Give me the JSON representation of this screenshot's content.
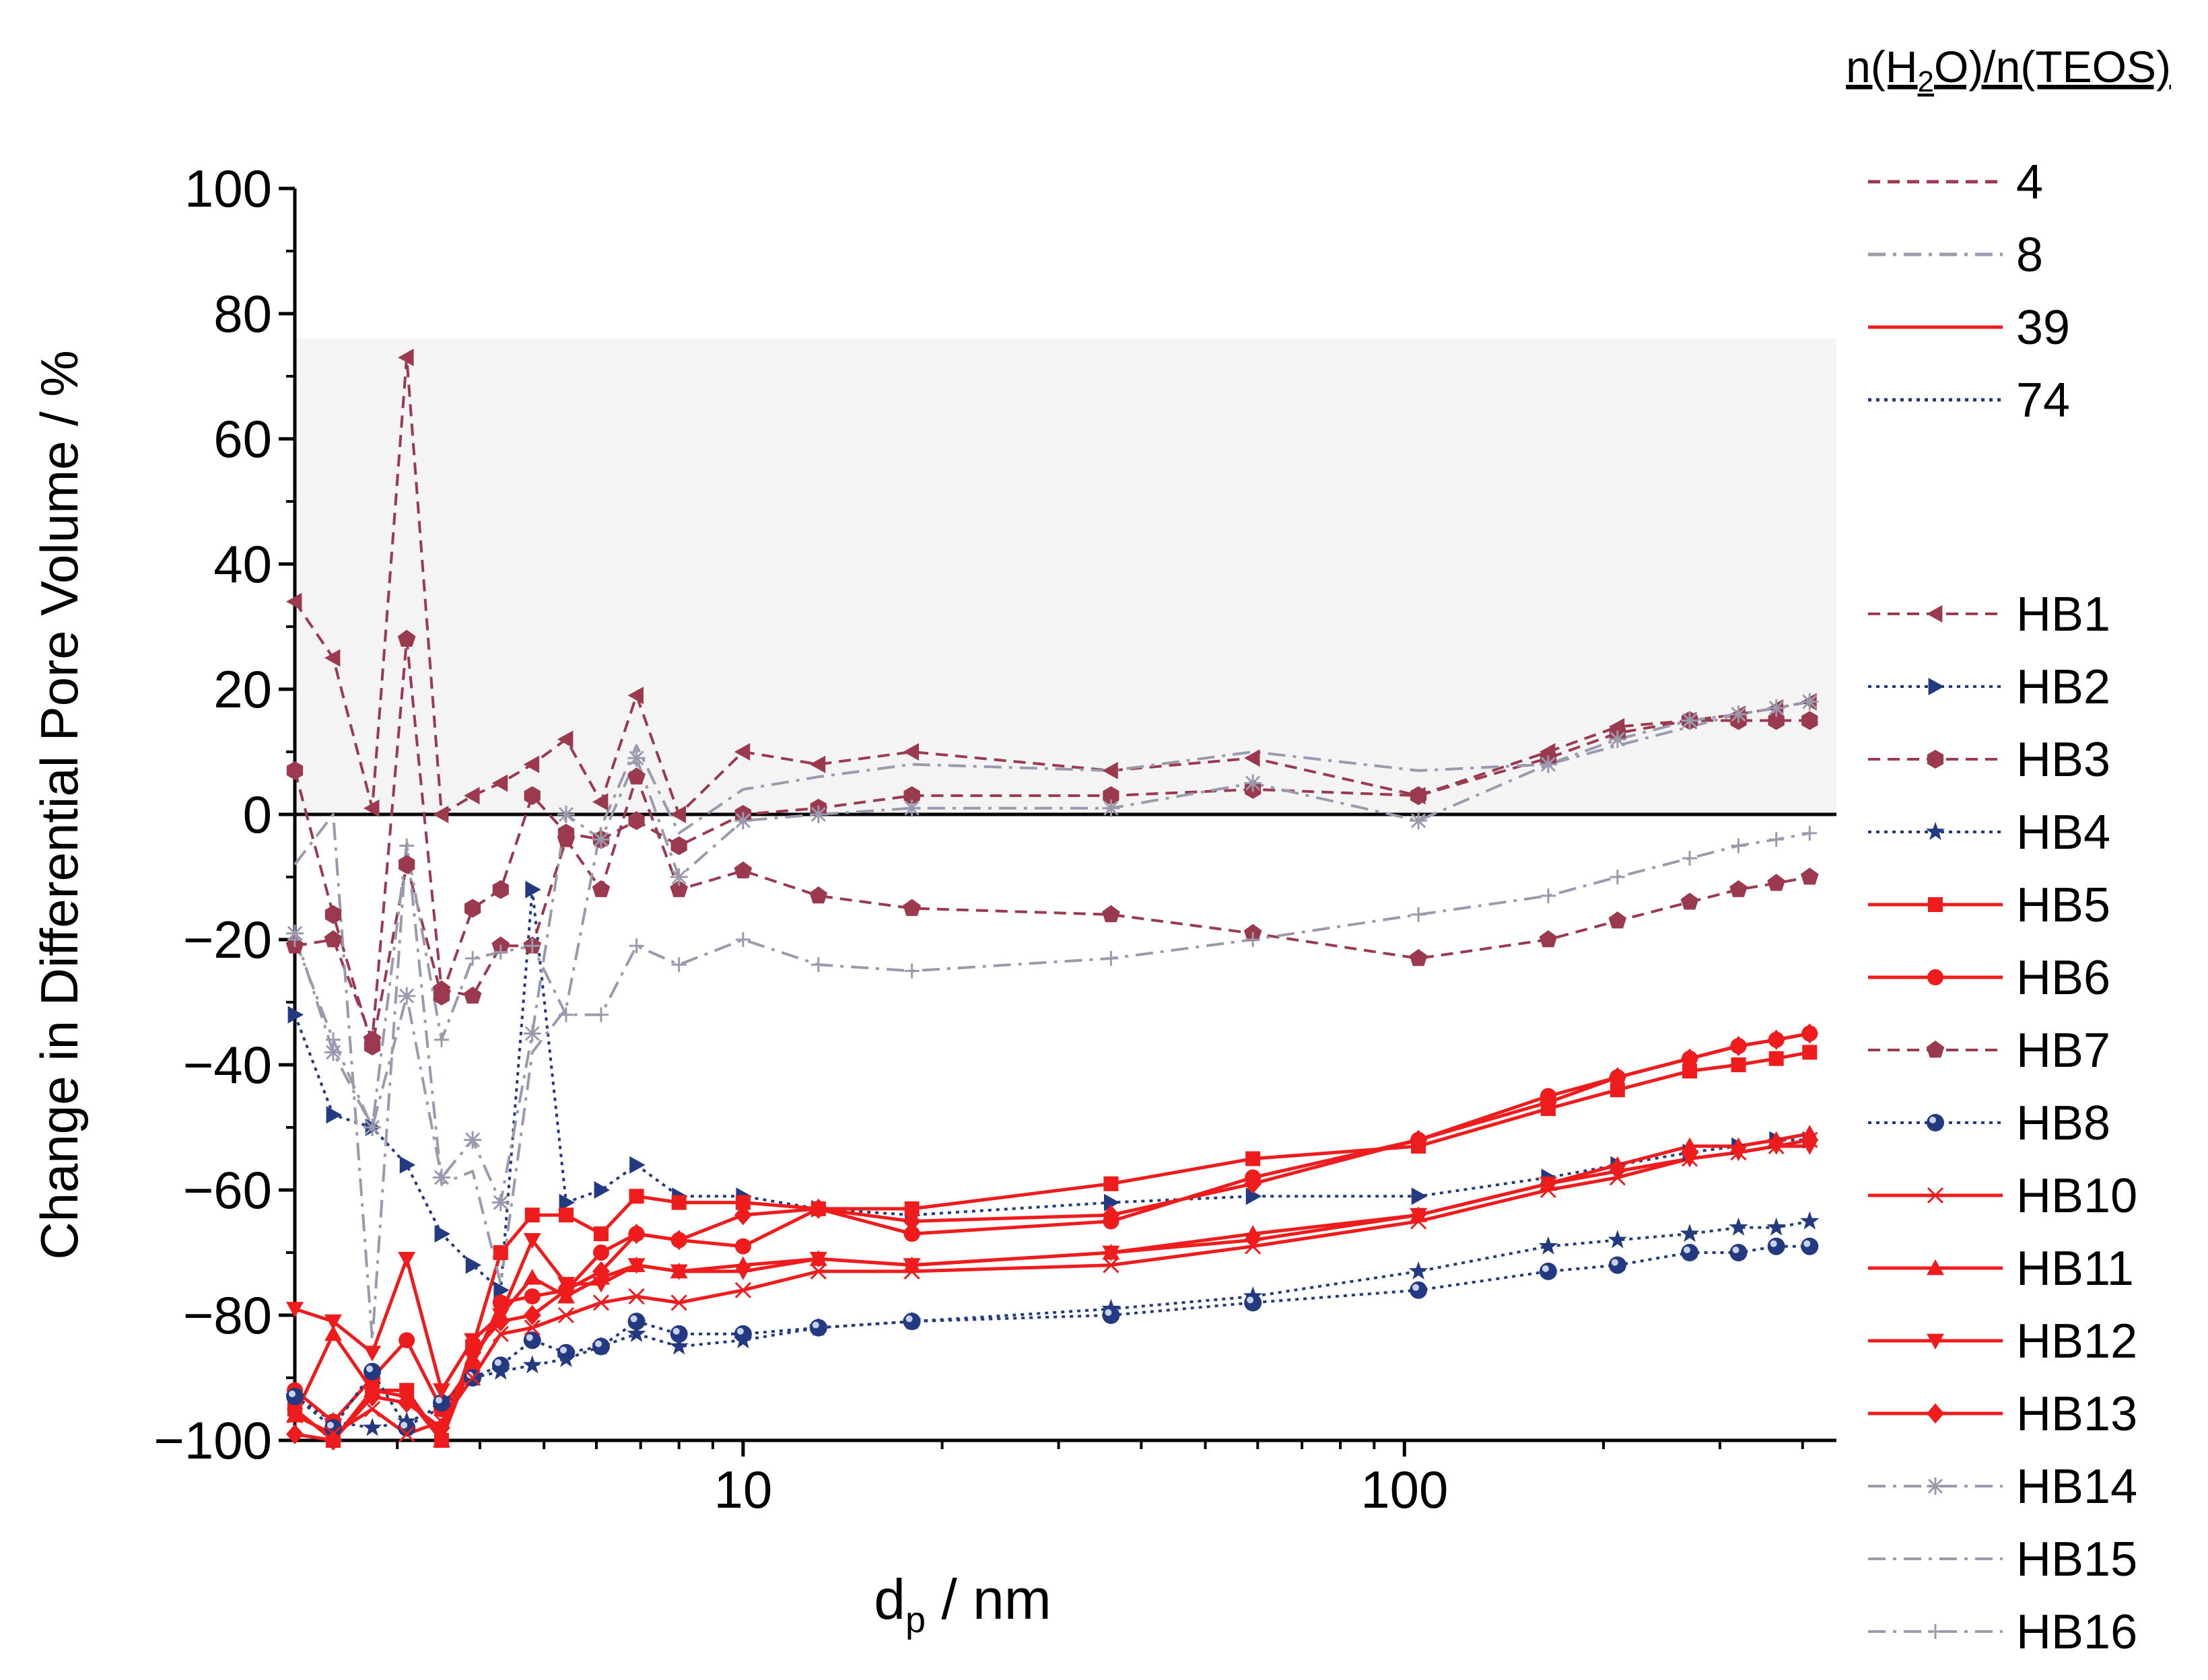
{
  "chart_data": {
    "type": "line",
    "xlabel": "d",
    "xlabel_sub": "p",
    "xlabel_unit": " / nm",
    "ylabel": "Change in Differential Pore Volume / %",
    "xscale": "log",
    "xlim": [
      2.1,
      450
    ],
    "ylim": [
      -100,
      100
    ],
    "yticks": [
      {
        "value": 100,
        "label": "100"
      },
      {
        "value": 80,
        "label": "80"
      },
      {
        "value": 60,
        "label": "60"
      },
      {
        "value": 40,
        "label": "40"
      },
      {
        "value": 20,
        "label": "20"
      },
      {
        "value": 0,
        "label": "0"
      },
      {
        "value": -20,
        "label": "−20"
      },
      {
        "value": -40,
        "label": "−40"
      },
      {
        "value": -60,
        "label": "−60"
      },
      {
        "value": -80,
        "label": "−80"
      },
      {
        "value": -100,
        "label": "−100"
      }
    ],
    "xticks": [
      {
        "value": 10,
        "label": "10"
      },
      {
        "value": 100,
        "label": "100"
      }
    ],
    "shaded_region": [
      0,
      76
    ],
    "x": [
      2.1,
      2.4,
      2.75,
      3.1,
      3.5,
      3.9,
      4.3,
      4.8,
      5.4,
      6.1,
      6.9,
      8.0,
      10,
      13,
      18,
      36,
      59,
      105,
      165,
      210,
      270,
      320,
      365,
      410
    ],
    "legend": {
      "title_prefix": "n(H",
      "title_sub": "2",
      "title_suffix": "O)/n(TEOS)",
      "ratios": [
        {
          "label": "4",
          "style": "dash",
          "color": "#9b3a4e"
        },
        {
          "label": "8",
          "style": "dashdot",
          "color": "#9a9aae"
        },
        {
          "label": "39",
          "style": "solid",
          "color": "#ee1c1c"
        },
        {
          "label": "74",
          "style": "dot",
          "color": "#233a80"
        }
      ]
    },
    "series": [
      {
        "name": "HB1",
        "style": "dash",
        "color": "#9b3a4e",
        "marker": "triangle-left",
        "values": [
          34,
          25,
          1,
          73,
          0,
          3,
          5,
          8,
          12,
          2,
          19,
          0,
          10,
          8,
          10,
          7,
          9,
          3,
          10,
          14,
          15,
          16,
          17,
          18
        ]
      },
      {
        "name": "HB2",
        "style": "dot",
        "color": "#233a80",
        "marker": "triangle-right",
        "values": [
          -32,
          -48,
          -50,
          -56,
          -67,
          -72,
          -76,
          -12,
          -62,
          -60,
          -56,
          -61,
          -61,
          -63,
          -64,
          -62,
          -61,
          -61,
          -58,
          -56,
          -54,
          -53,
          -52,
          -52
        ]
      },
      {
        "name": "HB3",
        "style": "dash",
        "color": "#9b3a4e",
        "marker": "hexagon",
        "values": [
          7,
          -16,
          -37,
          -8,
          -29,
          -15,
          -12,
          3,
          -3,
          -4,
          -1,
          -5,
          0,
          1,
          3,
          3,
          4,
          3,
          9,
          13,
          15,
          15,
          15,
          15
        ]
      },
      {
        "name": "HB4",
        "style": "dot",
        "color": "#233a80",
        "marker": "star",
        "values": [
          -93,
          -97,
          -98,
          -97,
          -95,
          -90,
          -89,
          -88,
          -87,
          -85,
          -83,
          -85,
          -84,
          -82,
          -81,
          -79,
          -77,
          -73,
          -69,
          -68,
          -67,
          -66,
          -66,
          -65
        ]
      },
      {
        "name": "HB5",
        "style": "solid",
        "color": "#ee1c1c",
        "marker": "square",
        "values": [
          -95,
          -100,
          -92,
          -92,
          -100,
          -85,
          -70,
          -64,
          -64,
          -67,
          -61,
          -62,
          -62,
          -63,
          -63,
          -59,
          -55,
          -53,
          -47,
          -44,
          -41,
          -40,
          -39,
          -38
        ]
      },
      {
        "name": "HB6",
        "style": "solid",
        "color": "#ee1c1c",
        "marker": "circle",
        "values": [
          -92,
          -97,
          -90,
          -84,
          -95,
          -88,
          -78,
          -77,
          -76,
          -70,
          -67,
          -68,
          -69,
          -63,
          -67,
          -65,
          -58,
          -52,
          -45,
          -42,
          -39,
          -37,
          -36,
          -35
        ]
      },
      {
        "name": "HB7",
        "style": "dash",
        "color": "#9b3a4e",
        "marker": "pentagon",
        "values": [
          -21,
          -20,
          -36,
          28,
          -28,
          -29,
          -21,
          -21,
          -4,
          -12,
          6,
          -12,
          -9,
          -13,
          -15,
          -16,
          -19,
          -23,
          -20,
          -17,
          -14,
          -12,
          -11,
          -10
        ]
      },
      {
        "name": "HB8",
        "style": "dot",
        "color": "#233a80",
        "marker": "sphere",
        "values": [
          -93,
          -98,
          -89,
          -98,
          -94,
          -90,
          -88,
          -84,
          -86,
          -85,
          -81,
          -83,
          -83,
          -82,
          -81,
          -80,
          -78,
          -76,
          -73,
          -72,
          -70,
          -70,
          -69,
          -69
        ]
      },
      {
        "name": "HB10",
        "style": "solid",
        "color": "#ee1c1c",
        "marker": "x",
        "values": [
          -96,
          -99,
          -95,
          -99,
          -97,
          -90,
          -83,
          -82,
          -80,
          -78,
          -77,
          -78,
          -76,
          -73,
          -73,
          -72,
          -69,
          -65,
          -60,
          -58,
          -55,
          -54,
          -53,
          -52
        ]
      },
      {
        "name": "HB11",
        "style": "solid",
        "color": "#ee1c1c",
        "marker": "triangle-up",
        "values": [
          -96,
          -83,
          -92,
          -93,
          -100,
          -87,
          -80,
          -74,
          -77,
          -74,
          -72,
          -73,
          -72,
          -71,
          -72,
          -70,
          -67,
          -64,
          -59,
          -56,
          -53,
          -53,
          -52,
          -51
        ]
      },
      {
        "name": "HB12",
        "style": "solid",
        "color": "#ee1c1c",
        "marker": "triangle-down",
        "values": [
          -79,
          -81,
          -86,
          -71,
          -92,
          -84,
          -80,
          -68,
          -75,
          -75,
          -72,
          -73,
          -73,
          -71,
          -72,
          -70,
          -68,
          -64,
          -59,
          -57,
          -55,
          -54,
          -53,
          -53
        ]
      },
      {
        "name": "HB13",
        "style": "solid",
        "color": "#ee1c1c",
        "marker": "diamond",
        "values": [
          -99,
          -100,
          -93,
          -94,
          -98,
          -86,
          -81,
          -80,
          -76,
          -73,
          -67,
          -68,
          -64,
          -63,
          -65,
          -64,
          -59,
          -52,
          -46,
          -42,
          -39,
          -37,
          -36,
          -35
        ]
      },
      {
        "name": "HB14",
        "style": "dashdot",
        "color": "#9a9aae",
        "marker": "asterisk",
        "values": [
          -19,
          -38,
          -50,
          -29,
          -58,
          -52,
          -62,
          -35,
          0,
          -4,
          9,
          -10,
          -1,
          0,
          1,
          1,
          5,
          -1,
          8,
          12,
          15,
          16,
          17,
          18
        ]
      },
      {
        "name": "HB15",
        "style": "dashdot",
        "color": "#9a9aae",
        "marker": "none",
        "values": [
          -8,
          0,
          -84,
          -4,
          -59,
          -57,
          -75,
          -38,
          -31,
          -2,
          11,
          -3,
          4,
          6,
          8,
          7,
          10,
          7,
          8,
          11,
          14,
          16,
          17,
          18
        ]
      },
      {
        "name": "HB16",
        "style": "dashdot",
        "color": "#9a9aae",
        "marker": "plus",
        "values": [
          -20,
          -36,
          -50,
          -5,
          -36,
          -23,
          -22,
          -21,
          -32,
          -32,
          -21,
          -24,
          -20,
          -24,
          -25,
          -23,
          -20,
          -16,
          -13,
          -10,
          -7,
          -5,
          -4,
          -3
        ]
      }
    ]
  }
}
